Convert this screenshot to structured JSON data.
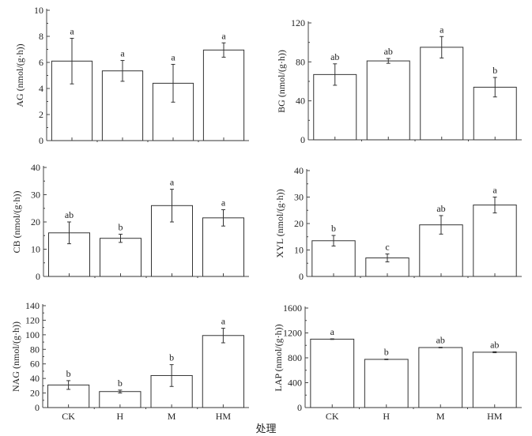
{
  "chart_data": [
    {
      "type": "bar",
      "ylabel": "AG (nmol/(g·h))",
      "categories": [
        "CK",
        "H",
        "M",
        "HM"
      ],
      "values": [
        6.1,
        5.35,
        4.4,
        6.95
      ],
      "errors": [
        1.75,
        0.8,
        1.45,
        0.55
      ],
      "letters": [
        "a",
        "a",
        "a",
        "a"
      ],
      "ylim": [
        0,
        10
      ],
      "yticks": [
        0,
        2,
        4,
        6,
        8,
        10
      ],
      "show_xticks": false
    },
    {
      "type": "bar",
      "ylabel": "BG (nmol/(g·h))",
      "categories": [
        "CK",
        "H",
        "M",
        "HM"
      ],
      "values": [
        67,
        81,
        95,
        54
      ],
      "errors": [
        11,
        2.5,
        11,
        10
      ],
      "letters": [
        "ab",
        "ab",
        "a",
        "b"
      ],
      "ylim": [
        0,
        120
      ],
      "yticks": [
        0,
        40,
        80,
        120
      ],
      "show_xticks": false
    },
    {
      "type": "bar",
      "ylabel": "CB  (nmol/(g·h))",
      "categories": [
        "CK",
        "H",
        "M",
        "HM"
      ],
      "values": [
        16,
        14,
        26,
        21.5
      ],
      "errors": [
        4,
        1.5,
        6,
        3
      ],
      "letters": [
        "ab",
        "b",
        "a",
        "a"
      ],
      "ylim": [
        0,
        40
      ],
      "yticks": [
        0,
        10,
        20,
        30,
        40
      ],
      "show_xticks": false
    },
    {
      "type": "bar",
      "ylabel": "XYL  (nmol/(g·h))",
      "categories": [
        "CK",
        "H",
        "M",
        "HM"
      ],
      "values": [
        13.5,
        7,
        19.5,
        27
      ],
      "errors": [
        2,
        1.5,
        3.5,
        3
      ],
      "letters": [
        "b",
        "c",
        "ab",
        "a"
      ],
      "ylim": [
        0,
        40
      ],
      "yticks": [
        0,
        10,
        20,
        30,
        40
      ],
      "show_xticks": false
    },
    {
      "type": "bar",
      "ylabel": "NAG (nmol/(g·h))",
      "categories": [
        "CK",
        "H",
        "M",
        "HM"
      ],
      "values": [
        31,
        22,
        44,
        99
      ],
      "errors": [
        6,
        2,
        15,
        10
      ],
      "letters": [
        "b",
        "b",
        "b",
        "a"
      ],
      "ylim": [
        0,
        140
      ],
      "yticks": [
        0,
        20,
        40,
        60,
        80,
        100,
        120,
        140
      ],
      "show_xticks": true
    },
    {
      "type": "bar",
      "ylabel": "LAP (nmol/(g·h))",
      "categories": [
        "CK",
        "H",
        "M",
        "HM"
      ],
      "values": [
        1100,
        775,
        965,
        890
      ],
      "errors": [
        5,
        5,
        5,
        8
      ],
      "letters": [
        "a",
        "b",
        "ab",
        "ab"
      ],
      "ylim": [
        0,
        1600
      ],
      "yticks": [
        0,
        400,
        800,
        1200,
        1600
      ],
      "show_xticks": true
    }
  ],
  "xlabel": "处理"
}
